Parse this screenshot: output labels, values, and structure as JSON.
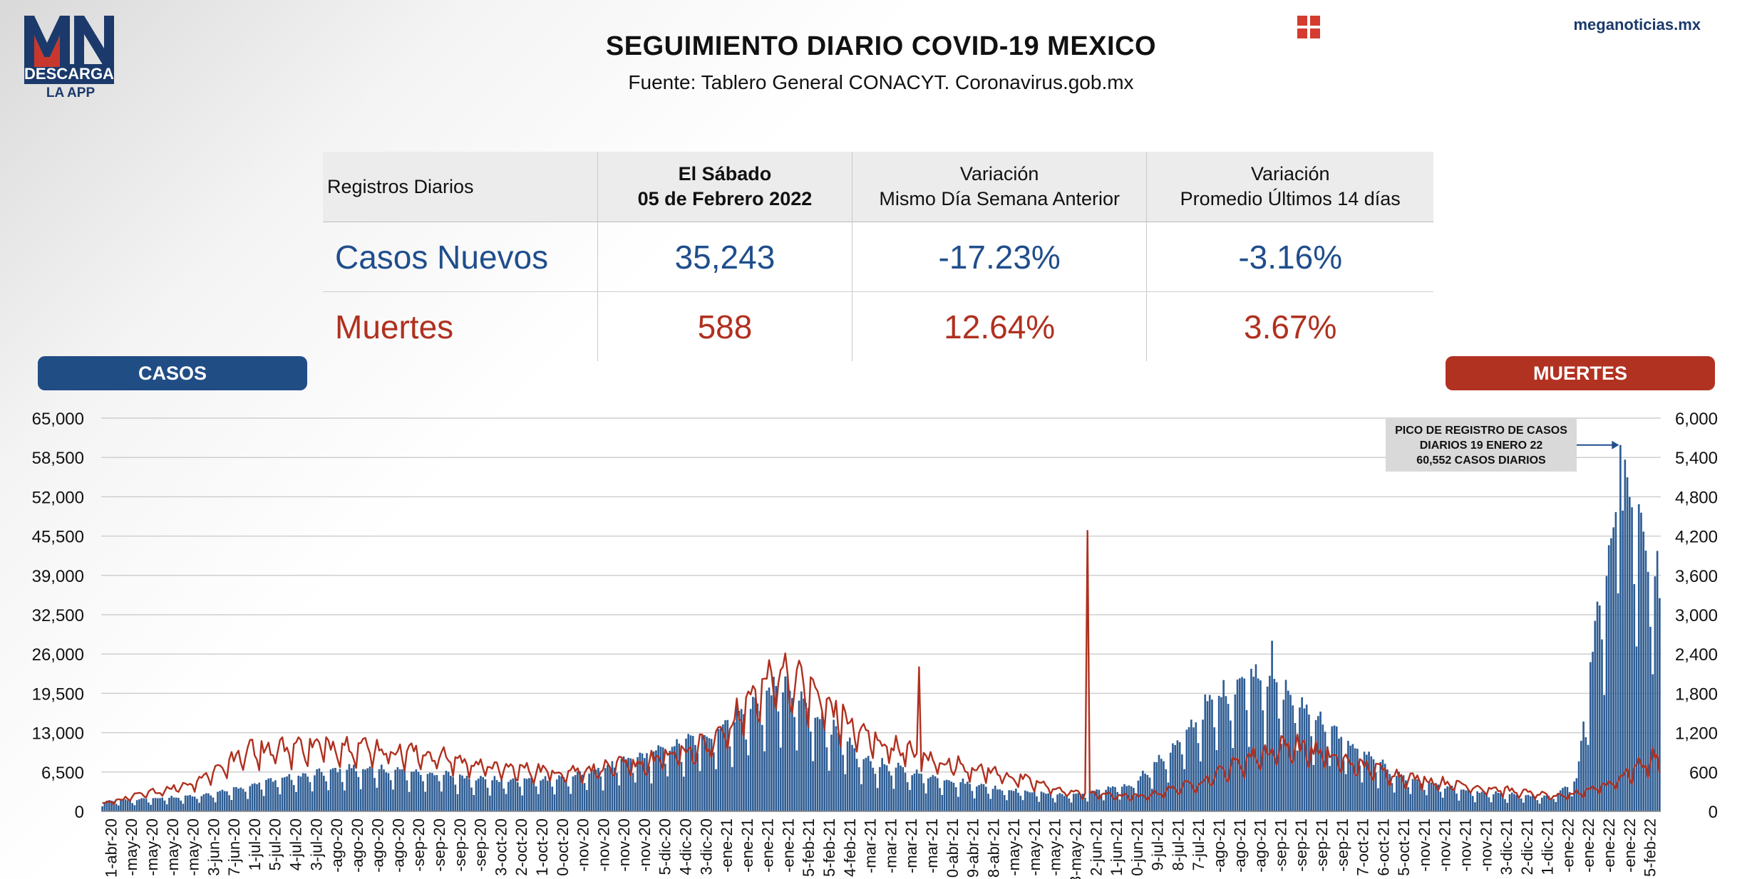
{
  "logo": {
    "mark": "MN",
    "line1": "DESCARGA",
    "line2": "LA APP"
  },
  "header": {
    "title": "SEGUIMIENTO DIARIO COVID-19 MEXICO",
    "subtitle": "Fuente: Tablero General CONACYT. Coronavirus.gob.mx",
    "brand": "meganoticias.mx",
    "menu_icon": "grid-icon"
  },
  "table": {
    "headers": {
      "c0": "Registros Diarios",
      "c1_line1": "El Sábado",
      "c1_line2": "05 de Febrero 2022",
      "c2_line1": "Variación",
      "c2_line2": "Mismo Día Semana Anterior",
      "c3_line1": "Variación",
      "c3_line2": "Promedio Últimos 14 días"
    },
    "casos": {
      "label": "Casos Nuevos",
      "value": "35,243",
      "var_semana": "-17.23%",
      "var_14": "-3.16%"
    },
    "muertes": {
      "label": "Muertes",
      "value": "588",
      "var_semana": "12.64%",
      "var_14": "3.67%"
    }
  },
  "labels": {
    "casos": "CASOS",
    "muertes": "MUERTES"
  },
  "colors": {
    "casos": "#1f4e8c",
    "muertes": "#b0301f",
    "bar": "#2d5c93"
  },
  "chart_data": {
    "type": "bar",
    "left_axis": {
      "min": 0,
      "max": 65000,
      "step": 6500,
      "ticks": [
        "0",
        "6,500",
        "13,000",
        "19,500",
        "26,000",
        "32,500",
        "39,000",
        "45,500",
        "52,000",
        "58,500",
        "65,000"
      ]
    },
    "right_axis": {
      "min": 0,
      "max": 6000,
      "step": 600,
      "ticks": [
        "0",
        "600",
        "1,200",
        "1,800",
        "2,400",
        "3,000",
        "3,600",
        "4,200",
        "4,800",
        "5,400",
        "6,000"
      ]
    },
    "x_start": "2020-04-01",
    "x_end": "2022-02-05",
    "x_tick_labels": [
      "1-abr-20",
      "-may-20",
      "-may-20",
      "-may-20",
      "-may-20",
      "3-jun-20",
      "7-jun-20",
      "1-jul-20",
      "5-jul-20",
      "4-jul-20",
      "3-jul-20",
      "-ago-20",
      "-ago-20",
      "-ago-20",
      "-ago-20",
      "-sep-20",
      "-sep-20",
      "-sep-20",
      "-sep-20",
      "3-oct-20",
      "2-oct-20",
      "1-oct-20",
      "0-oct-20",
      "-nov-20",
      "-nov-20",
      "-nov-20",
      "-nov-20",
      "5-dic-20",
      "4-dic-20",
      "3-dic-20",
      "-ene-21",
      "-ene-21",
      "-ene-21",
      "-ene-21",
      "5-feb-21",
      "5-feb-21",
      "4-feb-21",
      "-mar-21",
      "-mar-21",
      "-mar-21",
      "-mar-21",
      "0-abr-21",
      "9-abr-21",
      "8-abr-21",
      "-may-21",
      "-may-21",
      "-may-21",
      "3-may-21",
      "2-jun-21",
      "1-jun-21",
      "0-jun-21",
      "9-jul-21",
      "8-jul-21",
      "7-jul-21",
      "-ago-21",
      "-ago-21",
      "-ago-21",
      "-sep-21",
      "-sep-21",
      "-sep-21",
      "-sep-21",
      "7-oct-21",
      "6-oct-21",
      "5-oct-21",
      "-nov-21",
      "-nov-21",
      "-nov-21",
      "-nov-21",
      "3-dic-21",
      "2-dic-21",
      "1-dic-21",
      "-ene-22",
      "-ene-22",
      "-ene-22",
      "-ene-22",
      "5-feb-22"
    ],
    "cases_anchors": [
      [
        "2020-04-01",
        1500
      ],
      [
        "2020-05-15",
        2500
      ],
      [
        "2020-06-15",
        5000
      ],
      [
        "2020-07-20",
        6800
      ],
      [
        "2020-08-20",
        6000
      ],
      [
        "2020-09-20",
        4800
      ],
      [
        "2020-10-20",
        5200
      ],
      [
        "2020-11-20",
        8500
      ],
      [
        "2020-12-20",
        12000
      ],
      [
        "2021-01-10",
        17000
      ],
      [
        "2021-01-20",
        20000
      ],
      [
        "2021-02-05",
        15000
      ],
      [
        "2021-02-25",
        8000
      ],
      [
        "2021-03-25",
        5500
      ],
      [
        "2021-04-25",
        3500
      ],
      [
        "2021-05-25",
        2500
      ],
      [
        "2021-06-20",
        4000
      ],
      [
        "2021-07-10",
        10000
      ],
      [
        "2021-07-25",
        17000
      ],
      [
        "2021-08-15",
        22000
      ],
      [
        "2021-09-05",
        16000
      ],
      [
        "2021-09-25",
        10000
      ],
      [
        "2021-10-15",
        5500
      ],
      [
        "2021-11-15",
        3000
      ],
      [
        "2021-12-20",
        2200
      ],
      [
        "2021-12-31",
        5000
      ],
      [
        "2022-01-08",
        28000
      ],
      [
        "2022-01-19",
        50000
      ],
      [
        "2022-01-28",
        45000
      ],
      [
        "2022-02-05",
        36000
      ]
    ],
    "deaths_anchors": [
      [
        "2020-04-01",
        80
      ],
      [
        "2020-05-10",
        300
      ],
      [
        "2020-06-05",
        650
      ],
      [
        "2020-07-15",
        700
      ],
      [
        "2020-08-20",
        600
      ],
      [
        "2020-09-20",
        450
      ],
      [
        "2020-10-20",
        420
      ],
      [
        "2020-11-20",
        500
      ],
      [
        "2020-12-20",
        700
      ],
      [
        "2021-01-20",
        1500
      ],
      [
        "2021-02-05",
        1200
      ],
      [
        "2021-02-25",
        800
      ],
      [
        "2021-03-25",
        550
      ],
      [
        "2021-04-25",
        400
      ],
      [
        "2021-05-25",
        200
      ],
      [
        "2021-06-25",
        150
      ],
      [
        "2021-07-20",
        300
      ],
      [
        "2021-08-15",
        600
      ],
      [
        "2021-08-30",
        700
      ],
      [
        "2021-09-25",
        500
      ],
      [
        "2021-10-20",
        350
      ],
      [
        "2021-11-20",
        250
      ],
      [
        "2021-12-25",
        150
      ],
      [
        "2022-01-15",
        300
      ],
      [
        "2022-02-05",
        600
      ]
    ],
    "spikes": [
      {
        "date": "2020-06-04",
        "series": "deaths",
        "value": 1090
      },
      {
        "date": "2021-03-21",
        "series": "deaths",
        "value": 2200
      },
      {
        "date": "2021-06-02",
        "series": "deaths",
        "value": 4280
      },
      {
        "date": "2021-08-21",
        "series": "cases",
        "value": 28200
      },
      {
        "date": "2022-01-19",
        "series": "cases",
        "value": 60552
      }
    ],
    "annotation": {
      "line1": "PICO DE REGISTRO DE CASOS",
      "line2": "DIARIOS 19 ENERO 22",
      "line3": "60,552 CASOS DIARIOS",
      "target_date": "2022-01-19",
      "target_value": 60552
    }
  }
}
